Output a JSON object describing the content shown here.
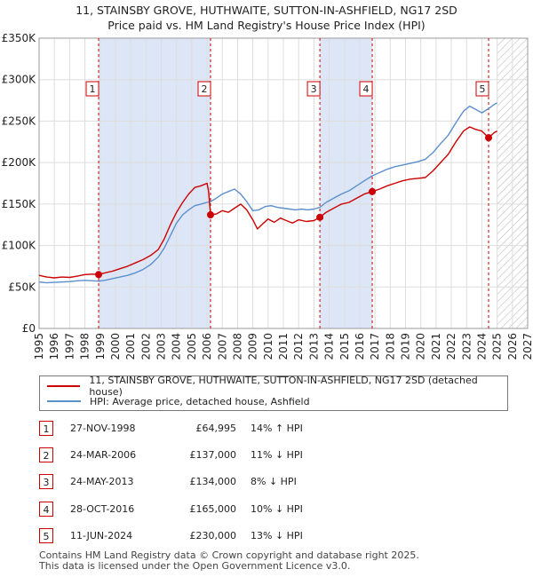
{
  "header": {
    "title_line1": "11, STAINSBY GROVE, HUTHWAITE, SUTTON-IN-ASHFIELD, NG17 2SD",
    "title_line2": "Price paid vs. HM Land Registry's House Price Index (HPI)"
  },
  "colors": {
    "price_line": "#cc0000",
    "hpi_line": "#5b8fcc",
    "shade": "#dde6f7",
    "marker_border": "#cc0000",
    "grid": "#dddddd"
  },
  "legend": {
    "price_label": "11, STAINSBY GROVE, HUTHWAITE, SUTTON-IN-ASHFIELD, NG17 2SD (detached house)",
    "hpi_label": "HPI: Average price, detached house, Ashfield"
  },
  "sales": [
    {
      "num": "1",
      "date": "27-NOV-1998",
      "price": "£64,995",
      "hpi": "14% ↑ HPI"
    },
    {
      "num": "2",
      "date": "24-MAR-2006",
      "price": "£137,000",
      "hpi": "11% ↓ HPI"
    },
    {
      "num": "3",
      "date": "24-MAY-2013",
      "price": "£134,000",
      "hpi": "8% ↓ HPI"
    },
    {
      "num": "4",
      "date": "28-OCT-2016",
      "price": "£165,000",
      "hpi": "10% ↓ HPI"
    },
    {
      "num": "5",
      "date": "11-JUN-2024",
      "price": "£230,000",
      "hpi": "13% ↓ HPI"
    }
  ],
  "footer": {
    "line1": "Contains HM Land Registry data © Crown copyright and database right 2025.",
    "line2": "This data is licensed under the Open Government Licence v3.0."
  },
  "chart_data": {
    "type": "line",
    "title": "Price paid vs. HM Land Registry's House Price Index (HPI)",
    "xlabel": "",
    "ylabel": "",
    "xlim": [
      1995,
      2027
    ],
    "ylim": [
      0,
      350000
    ],
    "x_ticks": [
      "1995",
      "1996",
      "1997",
      "1998",
      "1999",
      "2000",
      "2001",
      "2002",
      "2003",
      "2004",
      "2005",
      "2006",
      "2007",
      "2008",
      "2009",
      "2010",
      "2011",
      "2012",
      "2013",
      "2014",
      "2015",
      "2016",
      "2017",
      "2018",
      "2019",
      "2020",
      "2021",
      "2022",
      "2023",
      "2024",
      "2025",
      "2026",
      "2027"
    ],
    "y_ticks": [
      {
        "value": 0,
        "label": "£0"
      },
      {
        "value": 50000,
        "label": "£50K"
      },
      {
        "value": 100000,
        "label": "£100K"
      },
      {
        "value": 150000,
        "label": "£150K"
      },
      {
        "value": 200000,
        "label": "£200K"
      },
      {
        "value": 250000,
        "label": "£250K"
      },
      {
        "value": 300000,
        "label": "£300K"
      },
      {
        "value": 350000,
        "label": "£350K"
      }
    ],
    "grid": true,
    "shaded_periods": [
      [
        1998.9,
        2006.23
      ],
      [
        2013.39,
        2016.82
      ]
    ],
    "projection_start": 2025.0,
    "series": [
      {
        "name": "11, STAINSBY GROVE, HUTHWAITE, SUTTON-IN-ASHFIELD, NG17 2SD (detached house)",
        "points": [
          [
            1995.0,
            64000
          ],
          [
            1995.5,
            62000
          ],
          [
            1996.0,
            61000
          ],
          [
            1996.5,
            62000
          ],
          [
            1997.0,
            61500
          ],
          [
            1997.5,
            63000
          ],
          [
            1998.0,
            65000
          ],
          [
            1998.5,
            65500
          ],
          [
            1998.9,
            64995
          ],
          [
            1999.3,
            67000
          ],
          [
            1999.8,
            69000
          ],
          [
            2000.3,
            72000
          ],
          [
            2000.8,
            75000
          ],
          [
            2001.3,
            79000
          ],
          [
            2001.8,
            83000
          ],
          [
            2002.3,
            88000
          ],
          [
            2002.8,
            95000
          ],
          [
            2003.2,
            108000
          ],
          [
            2003.6,
            125000
          ],
          [
            2004.0,
            140000
          ],
          [
            2004.4,
            152000
          ],
          [
            2004.8,
            162000
          ],
          [
            2005.2,
            170000
          ],
          [
            2005.6,
            172000
          ],
          [
            2006.0,
            175000
          ],
          [
            2006.1,
            165000
          ],
          [
            2006.23,
            137000
          ],
          [
            2006.6,
            138000
          ],
          [
            2007.0,
            142000
          ],
          [
            2007.4,
            140000
          ],
          [
            2007.8,
            145000
          ],
          [
            2008.2,
            150000
          ],
          [
            2008.6,
            143000
          ],
          [
            2009.0,
            131000
          ],
          [
            2009.3,
            120000
          ],
          [
            2009.7,
            127000
          ],
          [
            2010.0,
            132000
          ],
          [
            2010.4,
            128000
          ],
          [
            2010.8,
            133000
          ],
          [
            2011.2,
            130000
          ],
          [
            2011.6,
            127000
          ],
          [
            2012.0,
            131000
          ],
          [
            2012.5,
            129000
          ],
          [
            2013.0,
            130000
          ],
          [
            2013.39,
            134000
          ],
          [
            2013.8,
            140000
          ],
          [
            2014.3,
            145000
          ],
          [
            2014.8,
            150000
          ],
          [
            2015.3,
            152000
          ],
          [
            2015.8,
            157000
          ],
          [
            2016.3,
            162000
          ],
          [
            2016.82,
            165000
          ],
          [
            2017.3,
            168000
          ],
          [
            2017.8,
            172000
          ],
          [
            2018.3,
            175000
          ],
          [
            2018.8,
            178000
          ],
          [
            2019.3,
            180000
          ],
          [
            2019.8,
            181000
          ],
          [
            2020.3,
            182000
          ],
          [
            2020.8,
            190000
          ],
          [
            2021.3,
            200000
          ],
          [
            2021.8,
            210000
          ],
          [
            2022.3,
            225000
          ],
          [
            2022.8,
            238000
          ],
          [
            2023.2,
            243000
          ],
          [
            2023.6,
            240000
          ],
          [
            2024.0,
            238000
          ],
          [
            2024.44,
            230000
          ],
          [
            2024.8,
            236000
          ],
          [
            2025.0,
            238000
          ]
        ]
      },
      {
        "name": "HPI: Average price, detached house, Ashfield",
        "points": [
          [
            1995.0,
            56000
          ],
          [
            1995.5,
            55000
          ],
          [
            1996.0,
            55500
          ],
          [
            1996.5,
            56000
          ],
          [
            1997.0,
            56500
          ],
          [
            1997.5,
            57500
          ],
          [
            1998.0,
            58000
          ],
          [
            1998.5,
            57500
          ],
          [
            1998.9,
            57000
          ],
          [
            1999.3,
            58000
          ],
          [
            1999.8,
            60000
          ],
          [
            2000.3,
            62000
          ],
          [
            2000.8,
            64000
          ],
          [
            2001.3,
            67000
          ],
          [
            2001.8,
            71000
          ],
          [
            2002.3,
            77000
          ],
          [
            2002.8,
            86000
          ],
          [
            2003.2,
            97000
          ],
          [
            2003.6,
            112000
          ],
          [
            2004.0,
            127000
          ],
          [
            2004.4,
            137000
          ],
          [
            2004.8,
            143000
          ],
          [
            2005.2,
            148000
          ],
          [
            2005.6,
            150000
          ],
          [
            2006.0,
            152000
          ],
          [
            2006.23,
            153000
          ],
          [
            2006.6,
            157000
          ],
          [
            2007.0,
            162000
          ],
          [
            2007.4,
            165000
          ],
          [
            2007.8,
            168000
          ],
          [
            2008.2,
            162000
          ],
          [
            2008.6,
            153000
          ],
          [
            2009.0,
            142000
          ],
          [
            2009.4,
            143000
          ],
          [
            2009.8,
            147000
          ],
          [
            2010.2,
            148000
          ],
          [
            2010.6,
            146000
          ],
          [
            2011.0,
            145000
          ],
          [
            2011.4,
            144000
          ],
          [
            2011.8,
            143000
          ],
          [
            2012.2,
            144000
          ],
          [
            2012.6,
            143000
          ],
          [
            2013.0,
            144000
          ],
          [
            2013.39,
            146000
          ],
          [
            2013.8,
            152000
          ],
          [
            2014.3,
            157000
          ],
          [
            2014.8,
            162000
          ],
          [
            2015.3,
            166000
          ],
          [
            2015.8,
            172000
          ],
          [
            2016.3,
            178000
          ],
          [
            2016.82,
            184000
          ],
          [
            2017.3,
            188000
          ],
          [
            2017.8,
            192000
          ],
          [
            2018.3,
            195000
          ],
          [
            2018.8,
            197000
          ],
          [
            2019.3,
            199000
          ],
          [
            2019.8,
            201000
          ],
          [
            2020.3,
            204000
          ],
          [
            2020.8,
            212000
          ],
          [
            2021.3,
            223000
          ],
          [
            2021.8,
            233000
          ],
          [
            2022.3,
            248000
          ],
          [
            2022.8,
            262000
          ],
          [
            2023.2,
            268000
          ],
          [
            2023.6,
            264000
          ],
          [
            2024.0,
            260000
          ],
          [
            2024.44,
            265000
          ],
          [
            2024.8,
            270000
          ],
          [
            2025.0,
            272000
          ]
        ]
      }
    ],
    "sale_markers": [
      {
        "num": "1",
        "x": 1998.9,
        "y": 64995
      },
      {
        "num": "2",
        "x": 2006.23,
        "y": 137000
      },
      {
        "num": "3",
        "x": 2013.39,
        "y": 134000
      },
      {
        "num": "4",
        "x": 2016.82,
        "y": 165000
      },
      {
        "num": "5",
        "x": 2024.44,
        "y": 230000
      }
    ]
  }
}
